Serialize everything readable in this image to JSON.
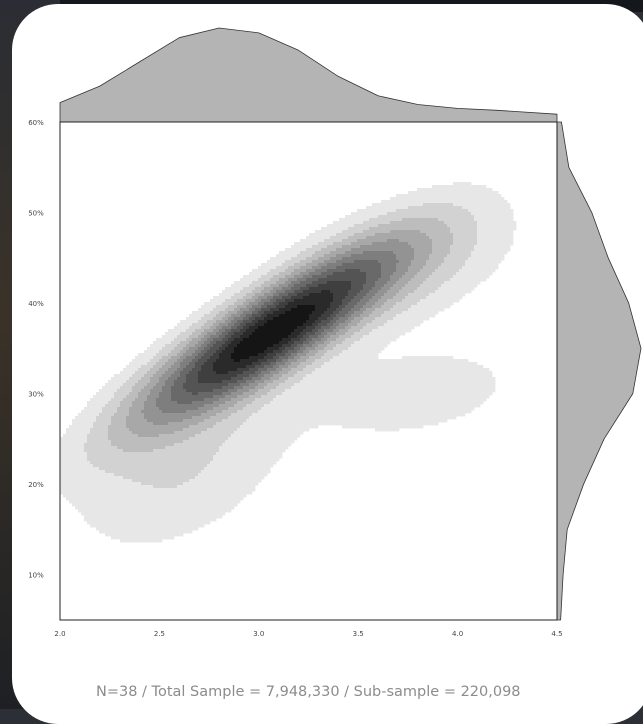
{
  "chart_data": {
    "type": "heatmap",
    "subtype": "2d-density-contour-with-marginals",
    "x_ticks": [
      "2.0",
      "2.5",
      "3.0",
      "3.5",
      "4.0",
      "4.5"
    ],
    "x_tick_values": [
      2.0,
      2.5,
      3.0,
      3.5,
      4.0,
      4.5
    ],
    "xlim": [
      2.0,
      4.5
    ],
    "y_ticks": [
      "10%",
      "20%",
      "30%",
      "40%",
      "50%",
      "60%"
    ],
    "y_tick_values": [
      10,
      20,
      30,
      40,
      50,
      60
    ],
    "ylim": [
      5,
      60
    ],
    "density_peak": {
      "x": 3.0,
      "y": 36
    },
    "density_components": [
      {
        "x": 3.05,
        "y": 36.5,
        "sx": 0.4,
        "sy": 6.0,
        "rho": 0.86,
        "w": 1.0
      },
      {
        "x": 3.7,
        "y": 44.0,
        "sx": 0.35,
        "sy": 4.5,
        "rho": 0.5,
        "w": 0.14
      },
      {
        "x": 2.6,
        "y": 22.0,
        "sx": 0.35,
        "sy": 6.0,
        "rho": 0.4,
        "w": 0.1
      },
      {
        "x": 3.8,
        "y": 30.0,
        "sx": 0.4,
        "sy": 4.0,
        "rho": 0.3,
        "w": 0.06
      }
    ],
    "contour_levels": 12,
    "top_marginal": {
      "x": [
        2.0,
        2.2,
        2.4,
        2.6,
        2.8,
        3.0,
        3.2,
        3.4,
        3.6,
        3.8,
        4.0,
        4.2,
        4.5
      ],
      "density": [
        0.18,
        0.35,
        0.6,
        0.85,
        0.95,
        0.9,
        0.72,
        0.45,
        0.25,
        0.16,
        0.12,
        0.1,
        0.06
      ]
    },
    "right_marginal": {
      "y": [
        5,
        10,
        15,
        20,
        25,
        30,
        35,
        40,
        45,
        50,
        55,
        60
      ],
      "density": [
        0.02,
        0.05,
        0.1,
        0.3,
        0.55,
        0.9,
        1.0,
        0.85,
        0.6,
        0.4,
        0.12,
        0.03
      ]
    },
    "colors": {
      "dark": "#000000",
      "light": "#ffffff",
      "marginal_fill": "#b4b4b4"
    }
  },
  "footer": "N=38 / Total Sample = 7,948,330 / Sub-sample = 220,098"
}
